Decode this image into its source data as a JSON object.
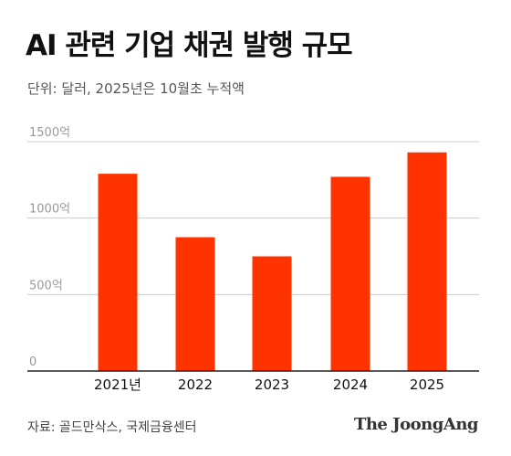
{
  "header": {
    "title": "AI 관련 기업 채권 발행 규모",
    "subtitle": "단위: 달러, 2025년은 10월초 누적액"
  },
  "footer": {
    "source": "자료: 골드만삭스, 국제금융센터",
    "brand": "The JoongAng"
  },
  "colors": {
    "bar": "#ff3300",
    "grid": "#cccccc",
    "axis": "#222222",
    "tick_text": "#999999",
    "category_text": "#111111"
  },
  "chart_data": {
    "type": "bar",
    "categories": [
      "2021년",
      "2022",
      "2023",
      "2024",
      "2025"
    ],
    "values": [
      1290,
      875,
      750,
      1270,
      1430
    ],
    "y_ticks": [
      {
        "value": 0,
        "label": "0"
      },
      {
        "value": 500,
        "label": "500억"
      },
      {
        "value": 1000,
        "label": "1000억"
      },
      {
        "value": 1500,
        "label": "1500억"
      }
    ],
    "ylim": [
      0,
      1500
    ],
    "grid": true,
    "legend": "none"
  }
}
